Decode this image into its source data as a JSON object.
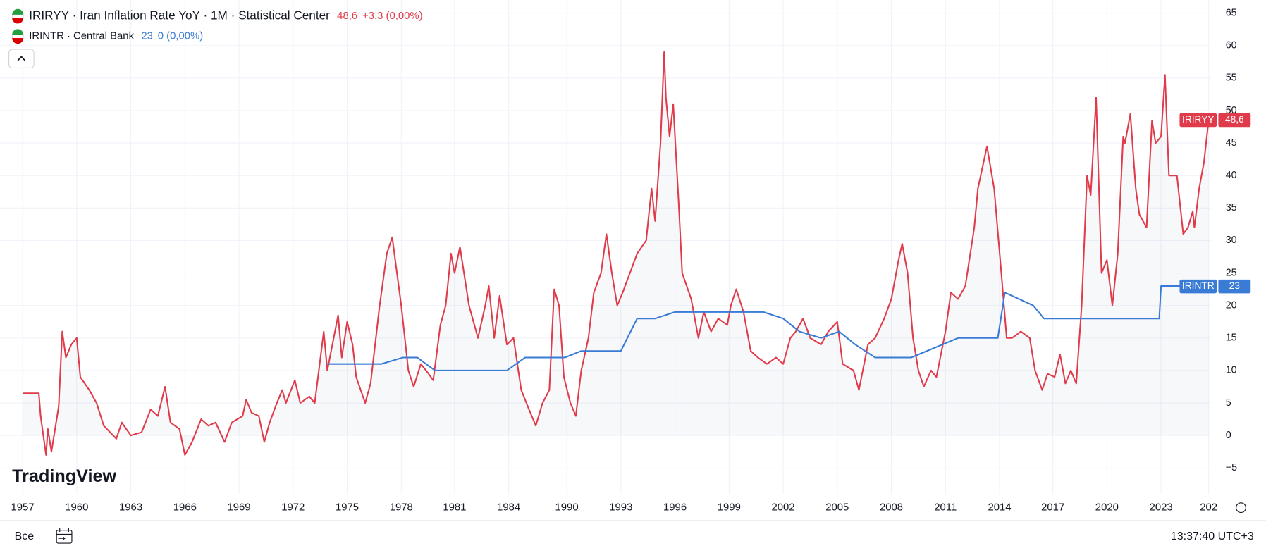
{
  "chart_data": {
    "type": "line",
    "series": [
      {
        "name": "IRIRYY",
        "legend": "IRIRYY · Iran Inflation Rate YoY · 1M · Statistical Center",
        "last": "48,6",
        "change": "+3,3 (0,00%)",
        "color": "#e03b4a",
        "x": [
          1957.0,
          1957.9,
          1958.0,
          1958.3,
          1958.4,
          1958.6,
          1959.0,
          1959.2,
          1959.4,
          1959.7,
          1960.0,
          1960.2,
          1960.7,
          1961.1,
          1961.5,
          1962.2,
          1962.5,
          1963.0,
          1963.6,
          1964.1,
          1964.5,
          1964.9,
          1965.2,
          1965.7,
          1966.0,
          1966.4,
          1966.9,
          1967.3,
          1967.7,
          1968.2,
          1968.6,
          1969.2,
          1969.4,
          1969.7,
          1970.1,
          1970.4,
          1970.7,
          1971.1,
          1971.4,
          1971.6,
          1972.1,
          1972.4,
          1972.9,
          1973.2,
          1973.7,
          1973.9,
          1974.5,
          1974.7,
          1975.0,
          1975.3,
          1975.5,
          1976.0,
          1976.3,
          1976.8,
          1977.2,
          1977.5,
          1978.0,
          1978.4,
          1978.7,
          1979.1,
          1979.4,
          1979.8,
          1980.2,
          1980.5,
          1980.8,
          1981.0,
          1981.3,
          1981.8,
          1982.3,
          1982.7,
          1982.9,
          1983.2,
          1983.5,
          1983.9,
          1984.5,
          1985.3,
          1986.1,
          1986.8,
          1987.5,
          1988.2,
          1988.7,
          1989.2,
          1989.7,
          1990.2,
          1990.5,
          1990.8,
          1991.2,
          1991.5,
          1991.9,
          1992.2,
          1992.5,
          1992.8,
          1993.1,
          1993.5,
          1993.9,
          1994.4,
          1994.7,
          1994.9,
          1995.2,
          1995.4,
          1995.5,
          1995.7,
          1995.9,
          1996.2,
          1996.4,
          1996.9,
          1997.3,
          1997.6,
          1998.0,
          1998.4,
          1998.9,
          1999.1,
          1999.4,
          1999.8,
          2000.2,
          2000.6,
          2001.1,
          2001.6,
          2002.0,
          2002.4,
          2002.7,
          2003.1,
          2003.5,
          2004.1,
          2004.5,
          2005.0,
          2005.3,
          2005.9,
          2006.2,
          2006.7,
          2007.1,
          2007.6,
          2008.0,
          2008.4,
          2008.6,
          2008.9,
          2009.2,
          2009.5,
          2009.8,
          2010.2,
          2010.5,
          2011.0,
          2011.3,
          2011.7,
          2012.1,
          2012.6,
          2012.8,
          2013.3,
          2013.7,
          2014.1,
          2014.4,
          2014.7,
          2015.2,
          2015.7,
          2016.0,
          2016.4,
          2016.7,
          2017.1,
          2017.4,
          2017.7,
          2018.0,
          2018.3,
          2018.6,
          2018.9,
          2019.1,
          2019.4,
          2019.7,
          2020.0,
          2020.3,
          2020.6,
          2020.9,
          2021.0,
          2021.3,
          2021.6,
          2021.8,
          2022.2,
          2022.5,
          2022.7,
          2023.0,
          2023.25,
          2023.5,
          2024.0,
          2024.4,
          2024.7,
          2025.0,
          2025.1,
          2025.4,
          2025.7,
          2026.0
        ],
        "values": [
          6.5,
          6.5,
          3,
          -3,
          1,
          -2.5,
          4.5,
          16,
          12,
          14,
          15,
          9,
          7,
          5,
          1.5,
          -0.5,
          2,
          0,
          0.5,
          4,
          3,
          7.5,
          2,
          1,
          -3,
          -1,
          2.5,
          1.5,
          2,
          -1,
          2,
          3,
          5.5,
          3.5,
          3,
          -1,
          2,
          5,
          7,
          5,
          8.5,
          5,
          6,
          5,
          16,
          10,
          18.5,
          12,
          17.5,
          14,
          9,
          5,
          8,
          20,
          28,
          30.5,
          20,
          10,
          7.5,
          11,
          10,
          8.5,
          17,
          20,
          28,
          25,
          29,
          20,
          15,
          20,
          23,
          15,
          21.5,
          14,
          15,
          7,
          4,
          1.5,
          5,
          7,
          22.5,
          20,
          9,
          5,
          3,
          10,
          15,
          22,
          25,
          31,
          25,
          20,
          22,
          25,
          28,
          30,
          38,
          33,
          45,
          59,
          52,
          46,
          51,
          36,
          25,
          21,
          15,
          19,
          16,
          18,
          17,
          20,
          22.5,
          19,
          13,
          12,
          11,
          12,
          11,
          15,
          16,
          18,
          15,
          14,
          16,
          17.5,
          11,
          10,
          7,
          14,
          15,
          18,
          21,
          27,
          29.5,
          25,
          15,
          10,
          7.5,
          10,
          9,
          16,
          22,
          21,
          23,
          32,
          38,
          44.5,
          38,
          25,
          15,
          15,
          16,
          15,
          10,
          7,
          9.5,
          9,
          12.5,
          8,
          10,
          8,
          20,
          40,
          37,
          52,
          25,
          27,
          20,
          28,
          46,
          45,
          49.5,
          38,
          34,
          32,
          48.5,
          45,
          46,
          55.5,
          40,
          40,
          31,
          32,
          34.5,
          32,
          38,
          42,
          48.6
        ]
      },
      {
        "name": "IRINTR",
        "legend": "IRINTR · Central Bank",
        "last": "23",
        "change": "0 (0,00%)",
        "color": "#3a7bd5",
        "x": [
          1973.9,
          1976.9,
          1978.1,
          1978.9,
          1979.9,
          1983.9,
          1985.7,
          1989.8,
          1990.8,
          1993.0,
          1993.9,
          1994.9,
          1996.0,
          2000.9,
          2002.0,
          2002.9,
          2004.1,
          2005.1,
          2006.0,
          2007.1,
          2009.1,
          2011.7,
          2013.9,
          2014.3,
          2015.9,
          2016.5,
          2022.9,
          2023.0,
          2026.0
        ],
        "values": [
          11,
          11,
          12,
          12,
          10,
          10,
          12,
          12,
          13,
          13,
          18,
          18,
          19,
          19,
          18,
          16,
          15,
          16,
          14,
          12,
          12,
          15,
          15,
          22,
          20,
          18,
          18,
          23,
          23
        ]
      }
    ],
    "ylim": [
      -9,
      67
    ],
    "yticks": [
      {
        "value": -5,
        "label": "−5"
      },
      0,
      5,
      10,
      15,
      20,
      25,
      30,
      35,
      40,
      45,
      50,
      55,
      60,
      65
    ],
    "xlim": [
      1957,
      2026
    ],
    "xticks": [
      1957,
      1960,
      1963,
      1966,
      1969,
      1972,
      1975,
      1978,
      1981,
      1984,
      1990,
      1993,
      1996,
      1999,
      2002,
      2005,
      2008,
      2011,
      2014,
      2017,
      2020,
      2023,
      {
        "value": 2026,
        "label": "202"
      }
    ],
    "grid": true,
    "logo": "TradingView",
    "range_button": "Все",
    "clock": "13:37:40 UTC+3"
  }
}
